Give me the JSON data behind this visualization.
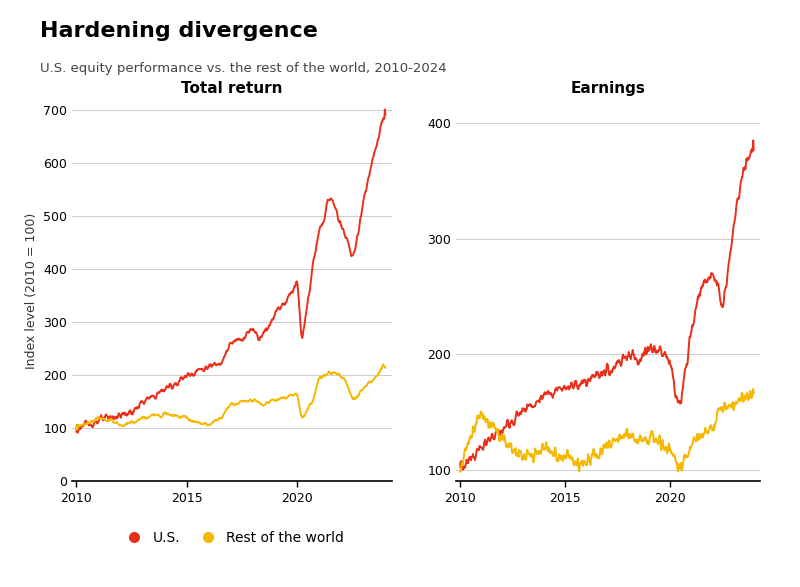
{
  "title": "Hardening divergence",
  "subtitle": "U.S. equity performance vs. the rest of the world, 2010-2024",
  "left_title": "Total return",
  "right_title": "Earnings",
  "ylabel": "Index level (2010 = 100)",
  "us_color": "#E8301A",
  "world_color": "#F5B800",
  "background_color": "#FFFFFF",
  "grid_color": "#CCCCCC",
  "left_yticks": [
    0,
    100,
    200,
    300,
    400,
    500,
    600,
    700
  ],
  "right_yticks": [
    100,
    200,
    300,
    400
  ],
  "left_ylim": [
    0,
    720
  ],
  "right_ylim": [
    90,
    420
  ],
  "xticks": [
    2010,
    2015,
    2020
  ],
  "legend_labels": [
    "U.S.",
    "Rest of the world"
  ],
  "us_tr_years": [
    2010,
    2011,
    2012,
    2012.5,
    2013,
    2013.5,
    2014,
    2014.5,
    2015,
    2015.5,
    2016,
    2016.5,
    2017,
    2017.5,
    2018,
    2018.25,
    2018.75,
    2019,
    2019.5,
    2020.0,
    2020.2,
    2020.75,
    2021,
    2021.5,
    2021.75,
    2022.0,
    2022.25,
    2022.5,
    2022.75,
    2023.0,
    2023.5,
    2024.0
  ],
  "us_tr_vals": [
    100,
    115,
    125,
    130,
    150,
    160,
    175,
    185,
    200,
    210,
    215,
    225,
    260,
    270,
    290,
    270,
    295,
    320,
    340,
    380,
    260,
    420,
    470,
    540,
    510,
    480,
    460,
    415,
    470,
    530,
    620,
    700
  ],
  "world_tr_years": [
    2010,
    2011,
    2011.5,
    2012,
    2012.5,
    2013,
    2014,
    2014.5,
    2015,
    2015.5,
    2016,
    2016.5,
    2017,
    2018,
    2018.5,
    2019,
    2019.5,
    2020.0,
    2020.2,
    2020.75,
    2021.0,
    2021.5,
    2022.0,
    2022.25,
    2022.5,
    2022.75,
    2023.0,
    2023.5,
    2024.0
  ],
  "world_tr_vals": [
    100,
    120,
    115,
    105,
    110,
    118,
    130,
    125,
    120,
    110,
    108,
    118,
    145,
    155,
    145,
    155,
    160,
    165,
    118,
    155,
    195,
    205,
    200,
    185,
    155,
    160,
    175,
    195,
    220
  ],
  "us_earn_years": [
    2010,
    2011,
    2012,
    2013,
    2014,
    2015,
    2016,
    2017,
    2018,
    2018.5,
    2019,
    2019.75,
    2020.0,
    2020.25,
    2020.5,
    2021.0,
    2021.5,
    2022.0,
    2022.25,
    2022.5,
    2022.75,
    2023.0,
    2023.5,
    2024.0
  ],
  "us_earn_vals": [
    100,
    120,
    135,
    150,
    165,
    170,
    175,
    185,
    200,
    195,
    205,
    200,
    195,
    170,
    155,
    220,
    260,
    270,
    265,
    240,
    270,
    310,
    360,
    380
  ],
  "world_earn_years": [
    2010,
    2010.5,
    2011.0,
    2011.5,
    2012,
    2013,
    2014,
    2015,
    2016,
    2017,
    2018,
    2018.5,
    2019,
    2019.5,
    2020.0,
    2020.25,
    2020.5,
    2020.75,
    2021.0,
    2021.5,
    2022.0,
    2022.25,
    2022.5,
    2022.75,
    2023.0,
    2023.5,
    2024.0
  ],
  "world_earn_vals": [
    100,
    130,
    148,
    140,
    125,
    110,
    118,
    110,
    105,
    120,
    130,
    125,
    128,
    125,
    120,
    105,
    100,
    108,
    120,
    130,
    135,
    148,
    155,
    152,
    158,
    162,
    165
  ]
}
